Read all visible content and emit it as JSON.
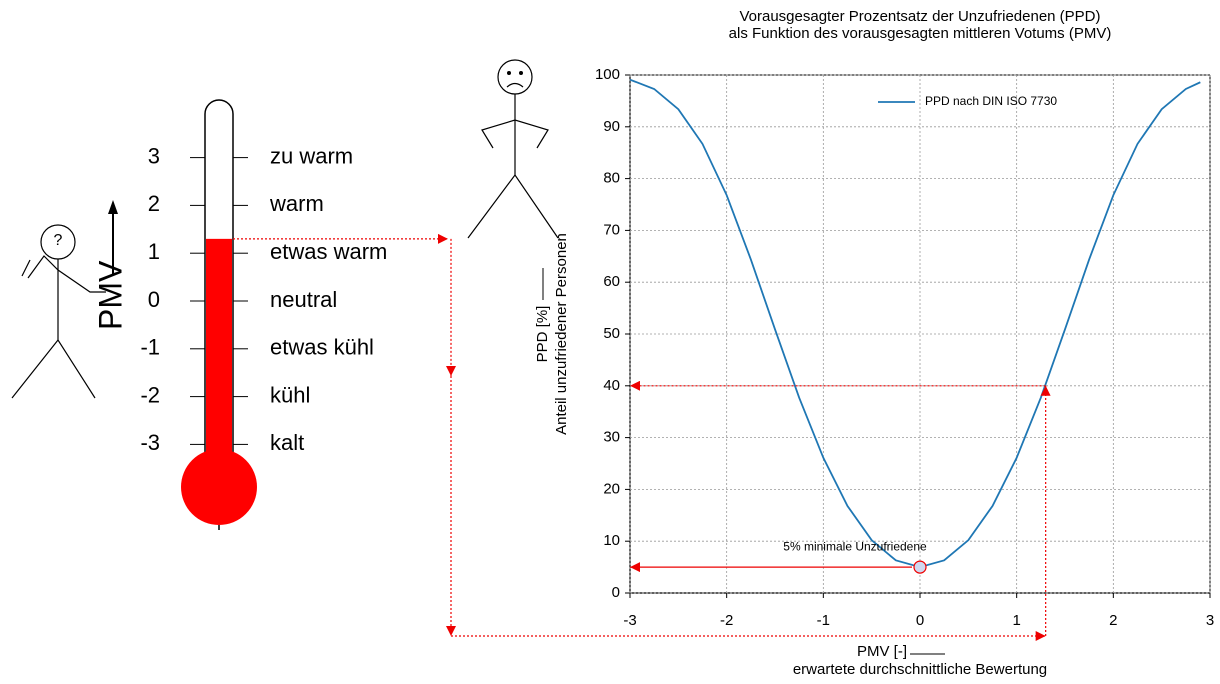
{
  "thermometer": {
    "axis_label": "PMV",
    "level": 1.3,
    "scale": [
      {
        "value": 3,
        "label": "zu warm"
      },
      {
        "value": 2,
        "label": "warm"
      },
      {
        "value": 1,
        "label": "etwas warm"
      },
      {
        "value": 0,
        "label": "neutral"
      },
      {
        "value": -1,
        "label": "etwas kühl"
      },
      {
        "value": -2,
        "label": "kühl"
      },
      {
        "value": -3,
        "label": "kalt"
      }
    ]
  },
  "figure_question": "?",
  "chart_data": {
    "type": "line",
    "title": [
      "Vorausgesagter Prozentsatz der Unzufriedenen (PPD)",
      "als Funktion des vorausgesagten mittleren Votums (PMV)"
    ],
    "xlabel": [
      "PMV [-]",
      "erwartete durchschnittliche Bewertung"
    ],
    "ylabel": [
      "PPD [%]",
      "Anteil unzufriedener Personen"
    ],
    "x": [
      -3,
      -2.75,
      -2.5,
      -2.25,
      -2,
      -1.75,
      -1.5,
      -1.25,
      -1,
      -0.75,
      -0.5,
      -0.25,
      0,
      0.25,
      0.5,
      0.75,
      1,
      1.25,
      1.5,
      1.75,
      2,
      2.25,
      2.5,
      2.75,
      2.9
    ],
    "series": [
      {
        "name": "PPD nach DIN ISO 7730",
        "color": "#1f77b4",
        "values": [
          99.1,
          97.3,
          93.4,
          86.7,
          76.8,
          64.4,
          50.9,
          37.7,
          26.1,
          16.8,
          10.2,
          6.3,
          5,
          6.3,
          10.2,
          16.8,
          26.1,
          37.7,
          50.9,
          64.4,
          76.8,
          86.7,
          93.4,
          97.3,
          98.6
        ]
      }
    ],
    "xlim": [
      -3,
      3
    ],
    "xticks": [
      -3,
      -2,
      -1,
      0,
      1,
      2,
      3
    ],
    "ylim": [
      0,
      100
    ],
    "yticks": [
      0,
      10,
      20,
      30,
      40,
      50,
      60,
      70,
      80,
      90,
      100
    ],
    "grid": true,
    "legend": "top-right",
    "minimum": {
      "pmv": 0,
      "ppd": 5,
      "label": "5% minimale Unzufriedene"
    },
    "example": {
      "pmv": 1.3,
      "ppd": 40
    }
  }
}
